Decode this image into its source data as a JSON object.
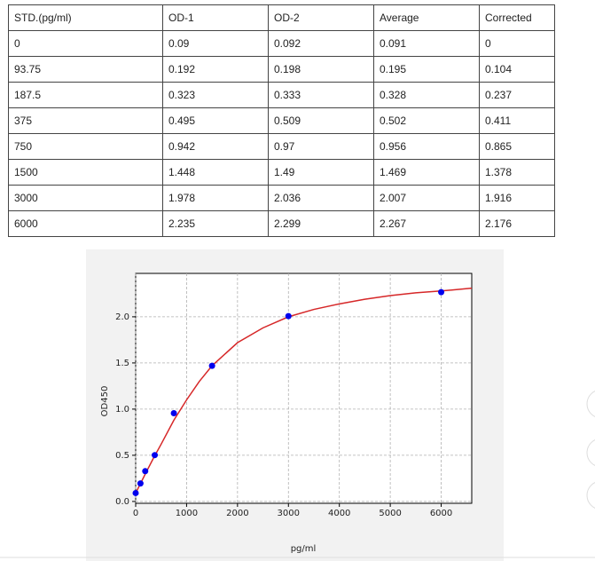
{
  "table": {
    "header": [
      "STD.(pg/ml)",
      "OD-1",
      "OD-2",
      "Average",
      "Corrected"
    ],
    "rows": [
      [
        "0",
        "0.09",
        "0.092",
        "0.091",
        "0"
      ],
      [
        "93.75",
        "0.192",
        "0.198",
        "0.195",
        "0.104"
      ],
      [
        "187.5",
        "0.323",
        "0.333",
        "0.328",
        "0.237"
      ],
      [
        "375",
        "0.495",
        "0.509",
        "0.502",
        "0.411"
      ],
      [
        "750",
        "0.942",
        "0.97",
        "0.956",
        "0.865"
      ],
      [
        "1500",
        "1.448",
        "1.49",
        "1.469",
        "1.378"
      ],
      [
        "3000",
        "1.978",
        "2.036",
        "2.007",
        "1.916"
      ],
      [
        "6000",
        "2.235",
        "2.299",
        "2.267",
        "2.176"
      ]
    ]
  },
  "chart_data": {
    "type": "scatter",
    "xlabel": "pg/ml",
    "ylabel": "OD450",
    "x": [
      0,
      93.75,
      187.5,
      375,
      750,
      1500,
      3000,
      6000
    ],
    "values": [
      0.091,
      0.195,
      0.328,
      0.502,
      0.956,
      1.469,
      2.007,
      2.267
    ],
    "color": "#0000ee",
    "curve": {
      "color": "#d62728",
      "x": [
        0,
        100,
        200,
        350,
        500,
        750,
        1000,
        1250,
        1500,
        2000,
        2500,
        3000,
        3500,
        4000,
        4500,
        5000,
        5500,
        6000,
        6600
      ],
      "values": [
        0.09,
        0.2,
        0.31,
        0.47,
        0.62,
        0.88,
        1.1,
        1.3,
        1.47,
        1.72,
        1.88,
        2.0,
        2.08,
        2.14,
        2.19,
        2.23,
        2.26,
        2.28,
        2.31
      ]
    },
    "xlim": [
      0,
      6600
    ],
    "ylim": [
      -0.02,
      2.47
    ],
    "xticks": [
      0,
      1000,
      2000,
      3000,
      4000,
      5000,
      6000
    ],
    "yticks": [
      {
        "value": 0,
        "label": "0.0"
      },
      0.5,
      {
        "value": 1,
        "label": "1.0"
      },
      1.5,
      {
        "value": 2,
        "label": "2.0"
      }
    ],
    "grid": true
  }
}
